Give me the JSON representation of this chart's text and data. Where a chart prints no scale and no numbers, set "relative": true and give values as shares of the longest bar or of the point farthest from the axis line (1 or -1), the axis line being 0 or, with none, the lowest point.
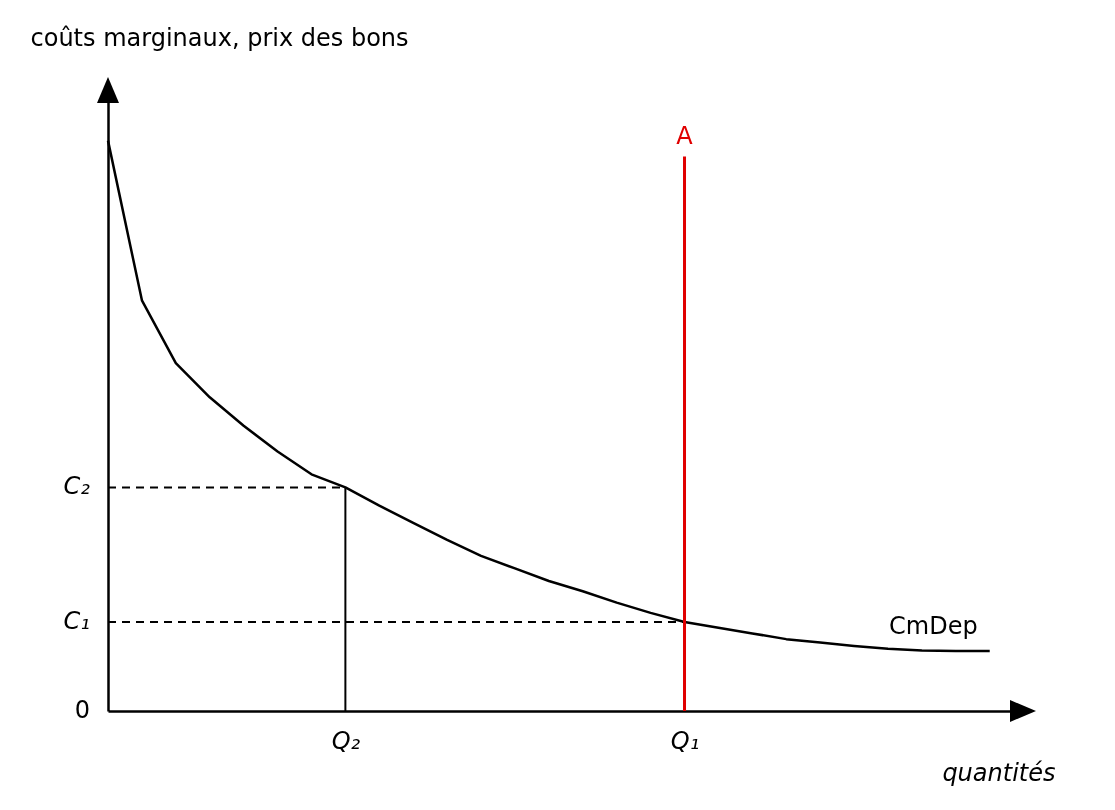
{
  "chart_data": {
    "type": "line",
    "relative": true,
    "ylabel": "coûts marginaux, prix des bons",
    "xlabel": "quantités",
    "categories": [
      null,
      null,
      null,
      null,
      null,
      null,
      null,
      "Q₂",
      null,
      null,
      null,
      null,
      null,
      null,
      null,
      null,
      null,
      "Q₁",
      null,
      null,
      null,
      null,
      null,
      null,
      null,
      null,
      null
    ],
    "annotations": [
      "0"
    ],
    "ref_lines": [
      {
        "axis": "y",
        "value": 0.392,
        "label": "C₂",
        "line_style": "dashed"
      },
      {
        "axis": "y",
        "value": 0.156,
        "label": "C₁",
        "line_style": "dashed"
      },
      {
        "axis": "x",
        "value": "Q₂",
        "line_style": "solid"
      },
      {
        "axis": "x",
        "value": "Q₁",
        "label": "A",
        "color": "#e00000",
        "line_style": "solid"
      }
    ],
    "series": [
      {
        "name": "CmDep",
        "color": "#000000",
        "values": [
          1.0,
          0.72,
          0.61,
          0.55,
          0.5,
          0.455,
          0.415,
          0.392,
          0.36,
          0.33,
          0.3,
          0.272,
          0.25,
          0.228,
          0.21,
          0.19,
          0.172,
          0.156,
          0.146,
          0.136,
          0.126,
          0.12,
          0.114,
          0.109,
          0.106,
          0.105,
          0.105
        ]
      }
    ]
  }
}
